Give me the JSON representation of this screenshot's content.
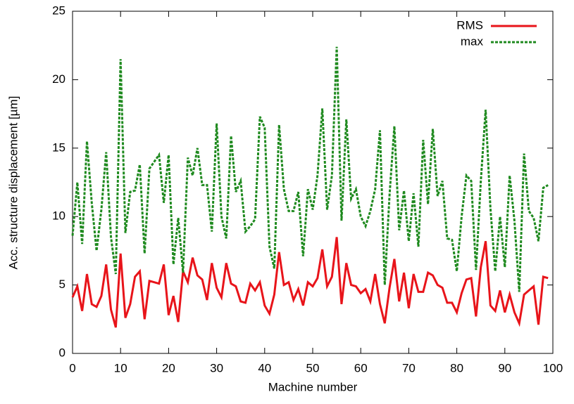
{
  "chart_data": {
    "type": "line",
    "xlabel": "Machine number",
    "ylabel": "Acc. structure displacement [µm]",
    "x": [
      0,
      1,
      2,
      3,
      4,
      5,
      6,
      7,
      8,
      9,
      10,
      11,
      12,
      13,
      14,
      15,
      16,
      17,
      18,
      19,
      20,
      21,
      22,
      23,
      24,
      25,
      26,
      27,
      28,
      29,
      30,
      31,
      32,
      33,
      34,
      35,
      36,
      37,
      38,
      39,
      40,
      41,
      42,
      43,
      44,
      45,
      46,
      47,
      48,
      49,
      50,
      51,
      52,
      53,
      54,
      55,
      56,
      57,
      58,
      59,
      60,
      61,
      62,
      63,
      64,
      65,
      66,
      67,
      68,
      69,
      70,
      71,
      72,
      73,
      74,
      75,
      76,
      77,
      78,
      79,
      80,
      81,
      82,
      83,
      84,
      85,
      86,
      87,
      88,
      89,
      90,
      91,
      92,
      93,
      94,
      95,
      96,
      97,
      98,
      99
    ],
    "series": [
      {
        "name": "RMS",
        "color": "#e8141a",
        "dashed": false,
        "values": [
          4.1,
          4.9,
          3.1,
          5.8,
          3.6,
          3.4,
          4.2,
          6.5,
          3.2,
          1.9,
          7.3,
          2.6,
          3.6,
          5.6,
          6.0,
          2.5,
          5.3,
          5.2,
          5.1,
          6.5,
          2.8,
          4.2,
          2.3,
          6.0,
          5.2,
          7.0,
          5.7,
          5.4,
          3.9,
          6.6,
          4.8,
          4.1,
          6.6,
          5.1,
          4.9,
          3.8,
          3.7,
          5.1,
          4.6,
          5.2,
          3.5,
          2.9,
          4.3,
          7.4,
          5.0,
          5.2,
          3.9,
          4.7,
          3.5,
          5.2,
          4.9,
          5.5,
          7.6,
          4.9,
          5.6,
          8.5,
          3.6,
          6.6,
          5.0,
          4.9,
          4.4,
          4.7,
          3.8,
          5.8,
          3.6,
          2.2,
          4.8,
          6.9,
          3.8,
          5.9,
          3.3,
          5.8,
          4.5,
          4.5,
          5.9,
          5.7,
          5.0,
          4.8,
          3.7,
          3.7,
          3.0,
          4.4,
          5.4,
          5.5,
          2.7,
          6.3,
          8.2,
          3.5,
          3.1,
          4.6,
          3.0,
          4.3,
          3.0,
          2.2,
          4.3,
          4.6,
          4.9,
          2.1,
          5.6,
          5.5
        ]
      },
      {
        "name": "max",
        "color": "#1f8a1f",
        "dashed": true,
        "values": [
          8.6,
          12.5,
          8.0,
          15.5,
          11.0,
          7.5,
          10.5,
          14.7,
          8.5,
          5.8,
          21.5,
          8.8,
          11.8,
          11.9,
          13.8,
          7.3,
          13.5,
          14.0,
          14.5,
          11.0,
          14.5,
          6.5,
          9.9,
          5.9,
          14.3,
          13.0,
          15.0,
          12.3,
          12.3,
          8.9,
          16.8,
          10.0,
          8.4,
          15.9,
          11.8,
          12.6,
          8.9,
          9.3,
          9.8,
          17.3,
          16.5,
          7.8,
          6.2,
          16.7,
          12.0,
          10.4,
          10.4,
          11.8,
          7.1,
          12.0,
          10.5,
          13.0,
          17.9,
          10.5,
          13.0,
          22.4,
          9.7,
          17.1,
          11.3,
          12.0,
          10.0,
          9.3,
          10.4,
          12.0,
          16.3,
          5.0,
          11.6,
          16.6,
          9.0,
          11.9,
          8.2,
          11.7,
          7.8,
          15.6,
          10.9,
          16.4,
          11.5,
          12.6,
          8.4,
          8.3,
          6.0,
          10.0,
          13.0,
          12.6,
          6.1,
          12.6,
          17.8,
          10.6,
          6.0,
          10.0,
          6.3,
          13.0,
          9.7,
          4.5,
          14.6,
          10.4,
          9.9,
          8.2,
          12.1,
          12.3
        ]
      }
    ],
    "xlim": [
      0,
      100
    ],
    "xticks": [
      0,
      10,
      20,
      30,
      40,
      50,
      60,
      70,
      80,
      90,
      100
    ],
    "ylim": [
      0,
      25
    ],
    "yticks": [
      0,
      5,
      10,
      15,
      20,
      25
    ],
    "legend": "top-right"
  }
}
